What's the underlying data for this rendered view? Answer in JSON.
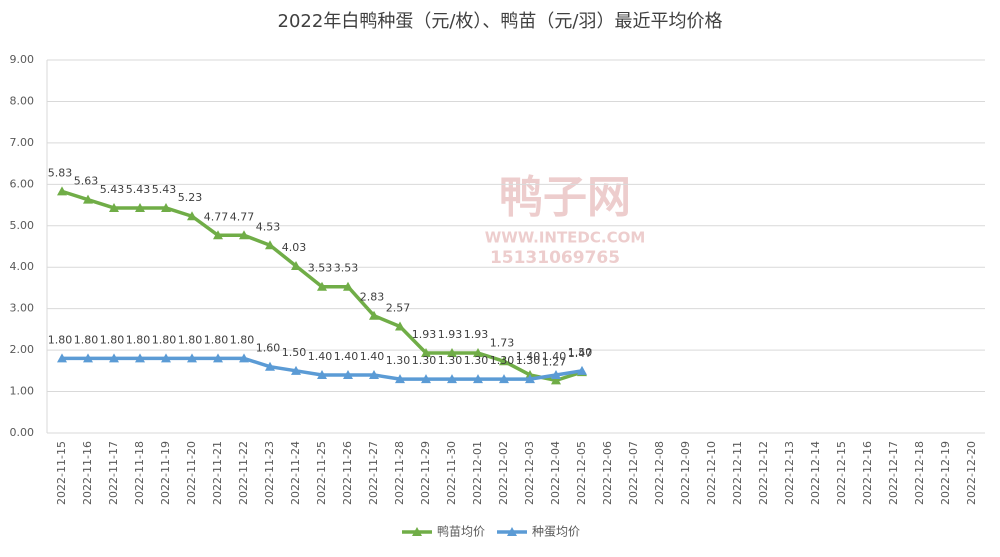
{
  "chart_data": {
    "type": "line",
    "title": "2022年白鸭种蛋（元/枚）、鸭苗（元/羽）最近平均价格",
    "watermark": {
      "name": "鸭子网",
      "site": "WWW.INTEDC.COM",
      "phone": "15131069765"
    },
    "categories": [
      "2022-11-15",
      "2022-11-16",
      "2022-11-17",
      "2022-11-18",
      "2022-11-19",
      "2022-11-20",
      "2022-11-21",
      "2022-11-22",
      "2022-11-23",
      "2022-11-24",
      "2022-11-25",
      "2022-11-26",
      "2022-11-27",
      "2022-11-28",
      "2022-11-29",
      "2022-11-30",
      "2022-12-01",
      "2022-12-02",
      "2022-12-03",
      "2022-12-04",
      "2022-12-05",
      "2022-12-06",
      "2022-12-07",
      "2022-12-08",
      "2022-12-09",
      "2022-12-10",
      "2022-12-11",
      "2022-12-12",
      "2022-12-13",
      "2022-12-14",
      "2022-12-15",
      "2022-12-16",
      "2022-12-17",
      "2022-12-18",
      "2022-12-19",
      "2022-12-20"
    ],
    "series": [
      {
        "name": "鸭苗均价",
        "color": "#70ad47",
        "values": [
          5.83,
          5.63,
          5.43,
          5.43,
          5.43,
          5.23,
          4.77,
          4.77,
          4.53,
          4.03,
          3.53,
          3.53,
          2.83,
          2.57,
          1.93,
          1.93,
          1.93,
          1.73,
          1.4,
          1.27,
          1.47,
          null,
          null,
          null,
          null,
          null,
          null,
          null,
          null,
          null,
          null,
          null,
          null,
          null,
          null,
          null
        ],
        "value_labels": [
          "5.83",
          "5.63",
          "5.43",
          "5.43",
          "5.43",
          "5.23",
          "4.77",
          "4.77",
          "4.53",
          "4.03",
          "3.53",
          "3.53",
          "2.83",
          "2.57",
          "1.93",
          "1.93",
          "1.93",
          "1.73",
          "1.40",
          "1.27",
          "1.47",
          null,
          null,
          null,
          null,
          null,
          null,
          null,
          null,
          null,
          null,
          null,
          null,
          null,
          null,
          null
        ]
      },
      {
        "name": "种蛋均价",
        "color": "#5b9bd5",
        "values": [
          1.8,
          1.8,
          1.8,
          1.8,
          1.8,
          1.8,
          1.8,
          1.8,
          1.6,
          1.5,
          1.4,
          1.4,
          1.4,
          1.3,
          1.3,
          1.3,
          1.3,
          1.3,
          1.3,
          1.4,
          1.5,
          null,
          null,
          null,
          null,
          null,
          null,
          null,
          null,
          null,
          null,
          null,
          null,
          null,
          null,
          null
        ],
        "value_labels": [
          "1.80",
          "1.80",
          "1.80",
          "1.80",
          "1.80",
          "1.80",
          "1.80",
          "1.80",
          "1.60",
          "1.50",
          "1.40",
          "1.40",
          "1.40",
          "1.30",
          "1.30",
          "1.30",
          "1.30",
          "1.30",
          "1.30",
          "1.40",
          "1.50",
          null,
          null,
          null,
          null,
          null,
          null,
          null,
          null,
          null,
          null,
          null,
          null,
          null,
          null,
          null
        ]
      }
    ],
    "ylim": [
      0,
      9
    ],
    "yticks": [
      {
        "value": 0,
        "label": "0.00"
      },
      {
        "value": 1,
        "label": "1.00"
      },
      {
        "value": 2,
        "label": "2.00"
      },
      {
        "value": 3,
        "label": "3.00"
      },
      {
        "value": 4,
        "label": "4.00"
      },
      {
        "value": 5,
        "label": "5.00"
      },
      {
        "value": 6,
        "label": "6.00"
      },
      {
        "value": 7,
        "label": "7.00"
      },
      {
        "value": 8,
        "label": "8.00"
      },
      {
        "value": 9,
        "label": "9.00"
      }
    ],
    "grid": true,
    "legend": "bottom"
  }
}
